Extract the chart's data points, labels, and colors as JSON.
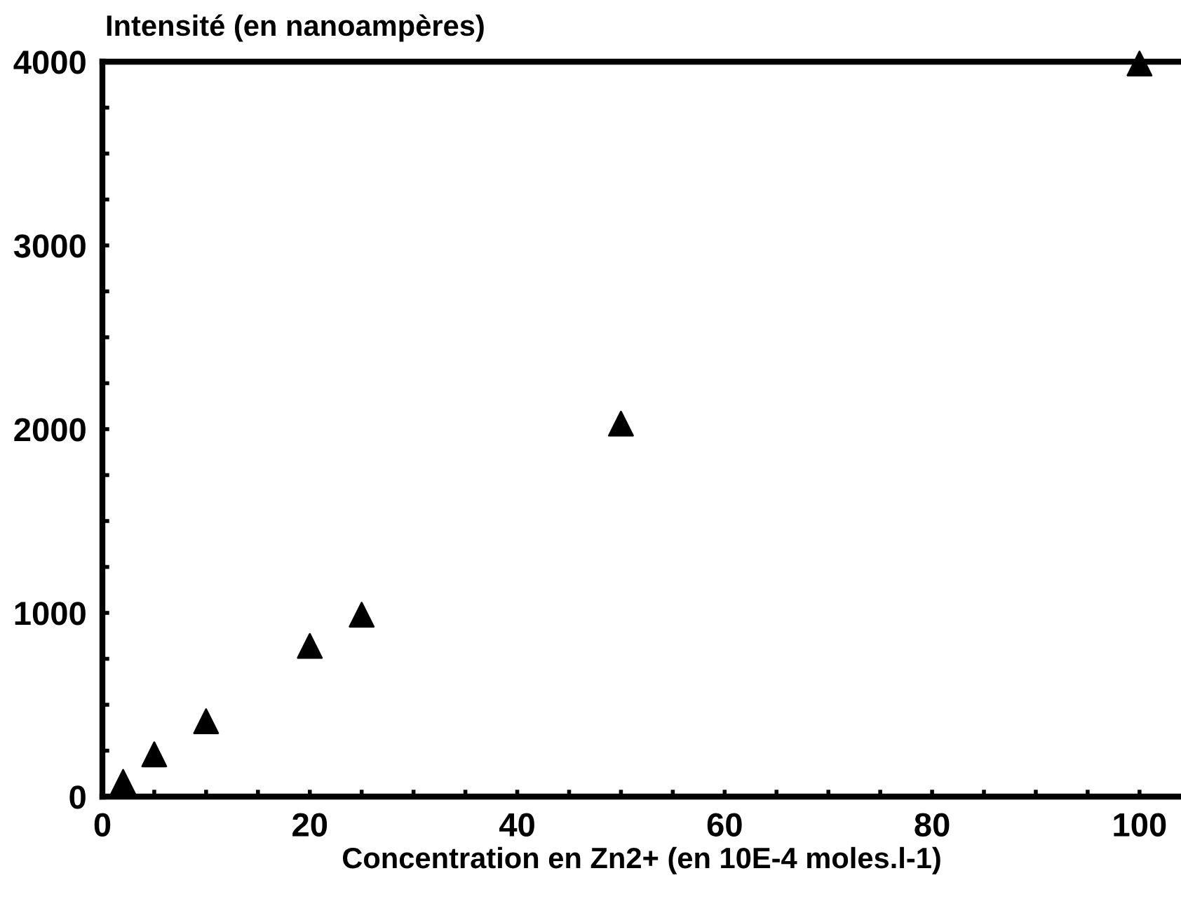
{
  "chart_data": {
    "type": "scatter",
    "xlabel": "Concentration en Zn2+ (en 10E-4 moles.l-1)",
    "ylabel": "Intensité (en nanoampères)",
    "x": [
      2,
      5,
      10,
      20,
      25,
      50,
      100
    ],
    "series": [
      {
        "color": "#000000",
        "values": [
          80,
          230,
          410,
          820,
          990,
          2030,
          3990
        ]
      }
    ],
    "marker": "triangle",
    "xlim": [
      0,
      104
    ],
    "ylim": [
      0,
      4000
    ],
    "xticks": [
      0,
      {
        "value": 5,
        "label": null
      },
      {
        "value": 10,
        "label": null
      },
      {
        "value": 15,
        "label": null
      },
      20,
      {
        "value": 25,
        "label": null
      },
      {
        "value": 30,
        "label": null
      },
      {
        "value": 35,
        "label": null
      },
      40,
      {
        "value": 45,
        "label": null
      },
      {
        "value": 50,
        "label": null
      },
      {
        "value": 55,
        "label": null
      },
      60,
      {
        "value": 65,
        "label": null
      },
      {
        "value": 70,
        "label": null
      },
      {
        "value": 75,
        "label": null
      },
      80,
      {
        "value": 85,
        "label": null
      },
      {
        "value": 90,
        "label": null
      },
      {
        "value": 95,
        "label": null
      },
      100
    ],
    "yticks": [
      0,
      {
        "value": 250,
        "label": null
      },
      {
        "value": 500,
        "label": null
      },
      {
        "value": 750,
        "label": null
      },
      1000,
      {
        "value": 1250,
        "label": null
      },
      {
        "value": 1500,
        "label": null
      },
      {
        "value": 1750,
        "label": null
      },
      2000,
      {
        "value": 2250,
        "label": null
      },
      {
        "value": 2500,
        "label": null
      },
      {
        "value": 2750,
        "label": null
      },
      3000,
      {
        "value": 3250,
        "label": null
      },
      {
        "value": 3500,
        "label": null
      },
      {
        "value": 3750,
        "label": null
      },
      4000
    ],
    "grid": false,
    "legend": false
  }
}
